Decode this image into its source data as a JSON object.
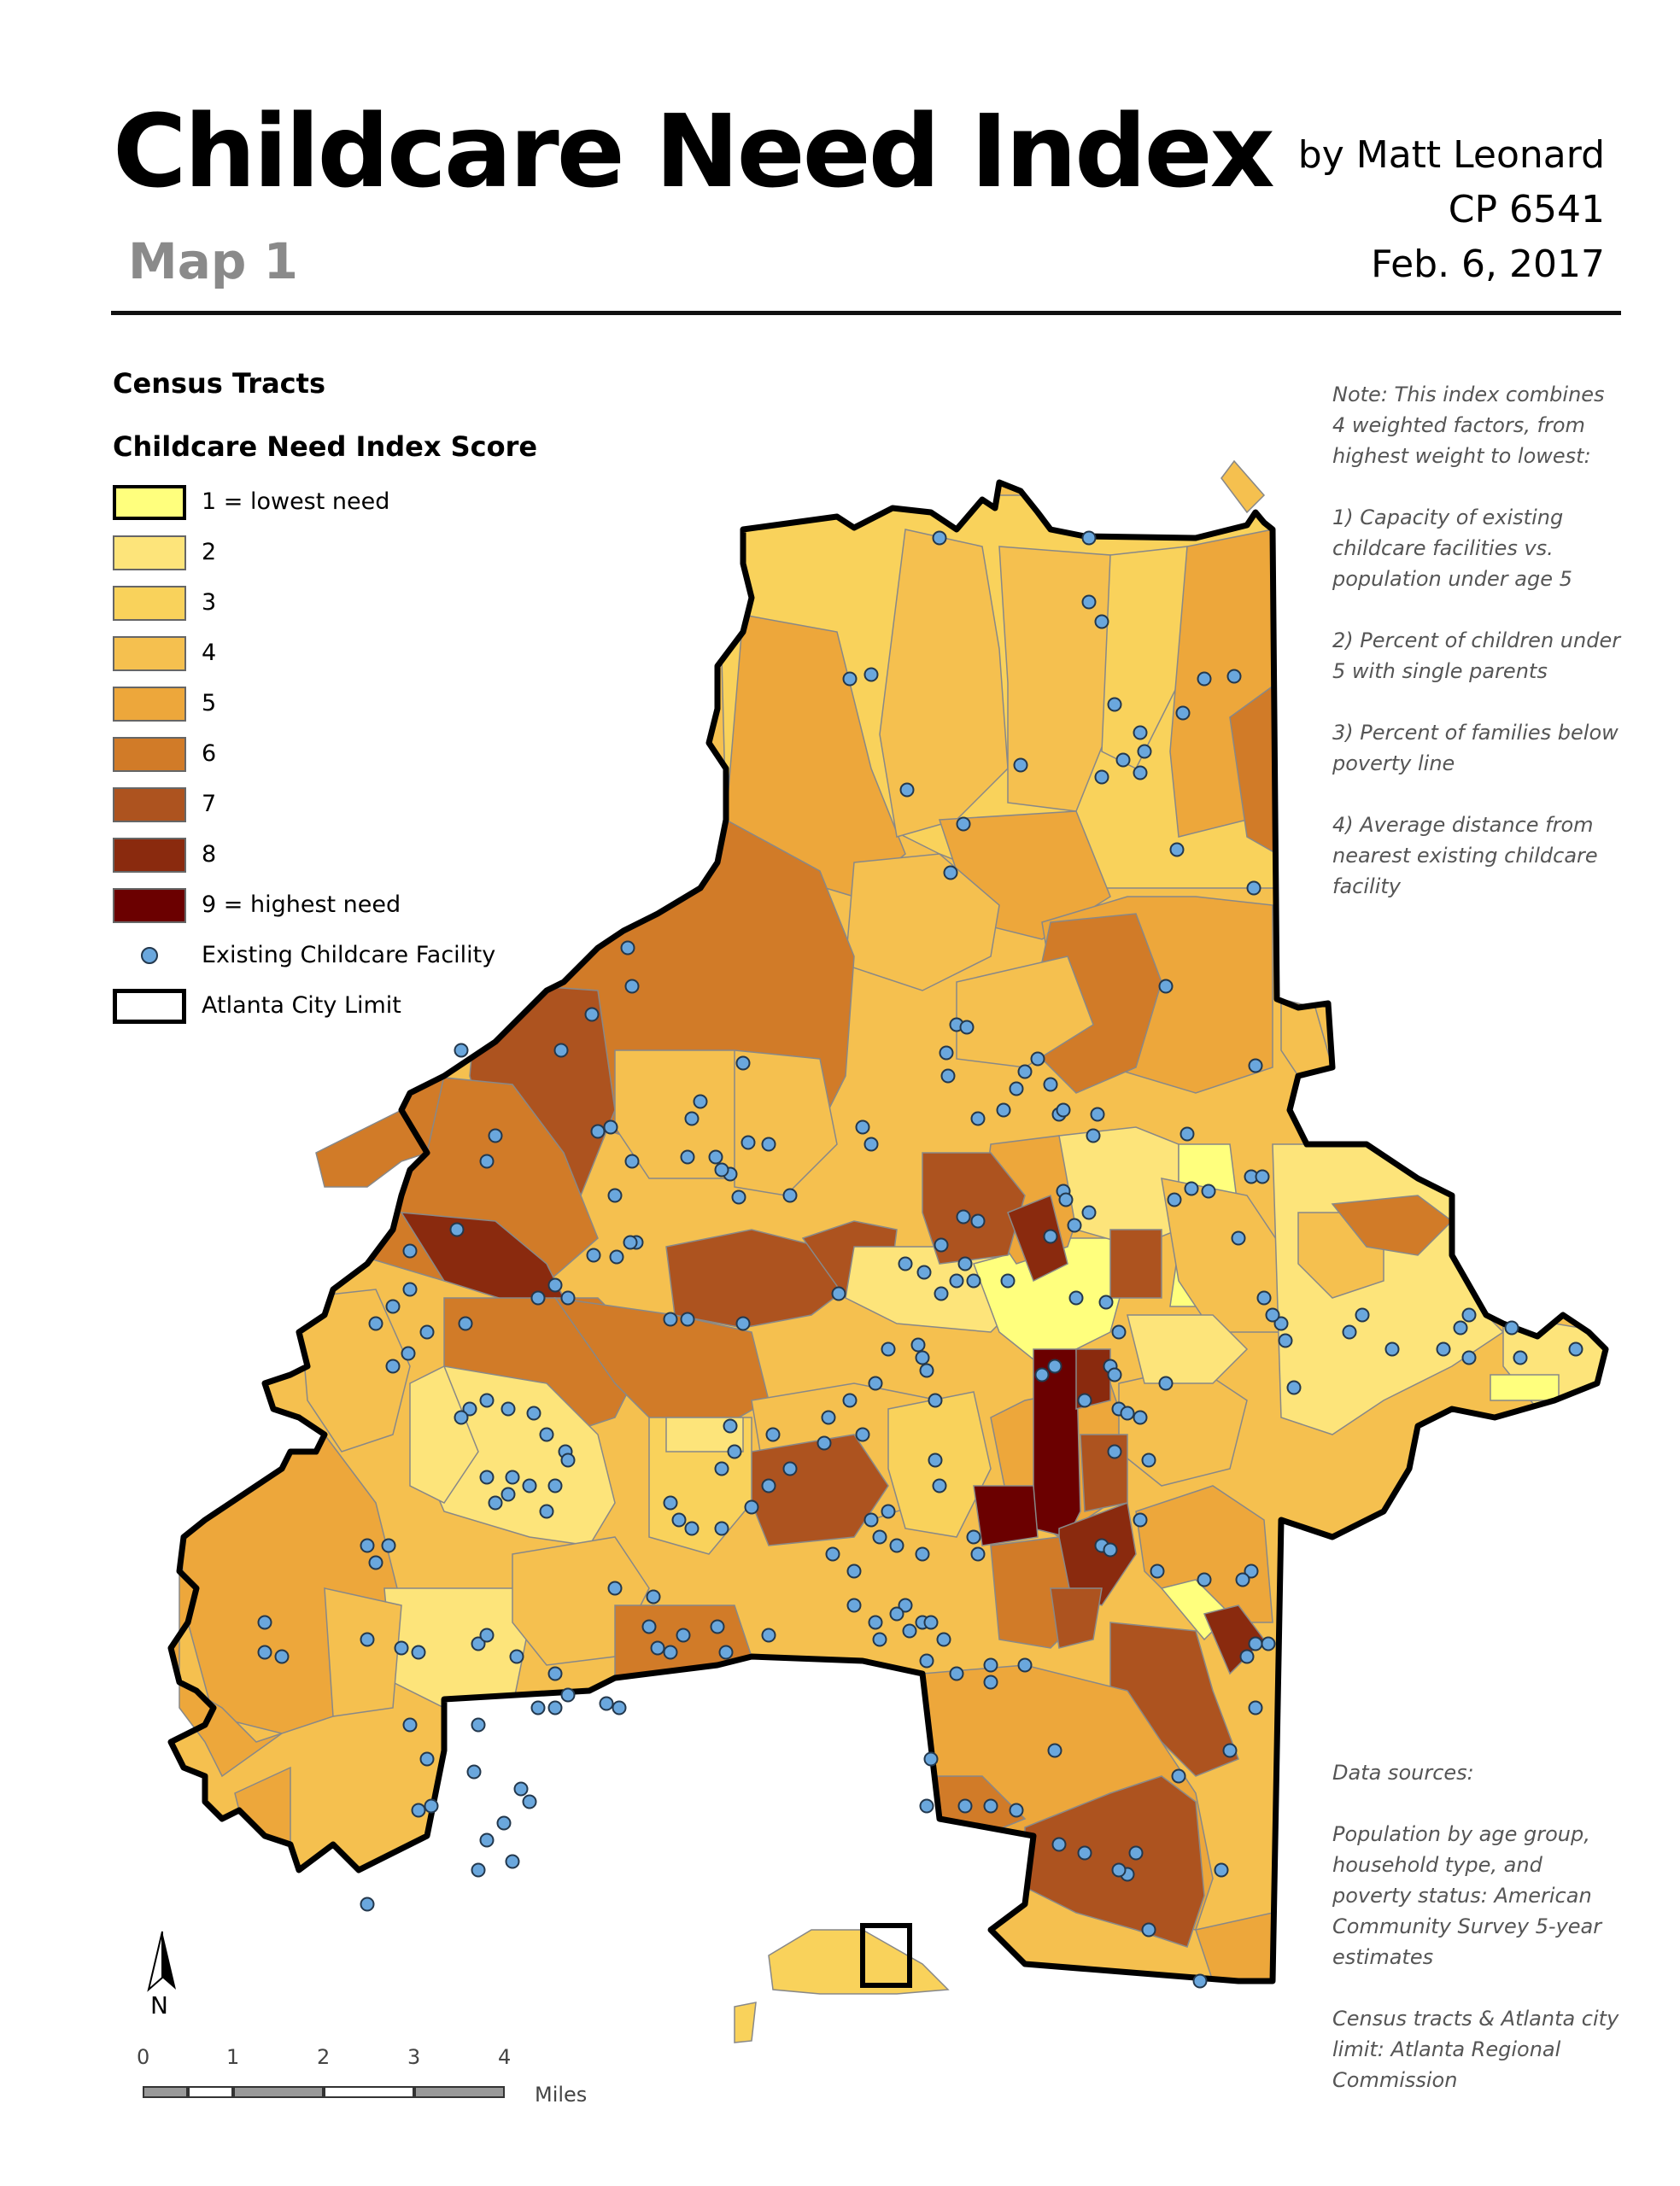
{
  "header": {
    "title": "Childcare Need Index",
    "subtitle": "Map 1",
    "author": "by Matt Leonard",
    "course": "CP 6541",
    "date": "Feb. 6, 2017"
  },
  "legend": {
    "layer_title": "Census Tracts",
    "field_title": "Childcare Need Index Score",
    "classes": [
      {
        "label": "1 = lowest need",
        "color": "#ffff7d"
      },
      {
        "label": "2",
        "color": "#fde47a"
      },
      {
        "label": "3",
        "color": "#f9d25b"
      },
      {
        "label": "4",
        "color": "#f5c04f"
      },
      {
        "label": "5",
        "color": "#eda73b"
      },
      {
        "label": "6",
        "color": "#d17b28"
      },
      {
        "label": "7",
        "color": "#ad531f"
      },
      {
        "label": "8",
        "color": "#8a2a0e"
      },
      {
        "label": "9 = highest need",
        "color": "#6b0000"
      }
    ],
    "facility_label": "Existing Childcare Facility",
    "facility_color": "#6aa7dd",
    "city_limit_label": "Atlanta City Limit"
  },
  "note": [
    "Note: This index combines 4 weighted factors, from highest weight to lowest:",
    "1) Capacity of existing childcare facilities vs. population under age 5",
    "2) Percent of children under 5 with single parents",
    "3) Percent of families below poverty line",
    "4) Average distance from nearest existing childcare facility"
  ],
  "sources": [
    "Data sources:",
    "Population by age group, household type, and poverty status: American Community Survey 5-year estimates",
    "Census tracts & Atlanta city limit: Atlanta Regional Commission"
  ],
  "north_arrow": {
    "label": "N"
  },
  "scale_bar": {
    "ticks": [
      "0",
      "1",
      "2",
      "3",
      "4"
    ],
    "units": "Miles"
  }
}
